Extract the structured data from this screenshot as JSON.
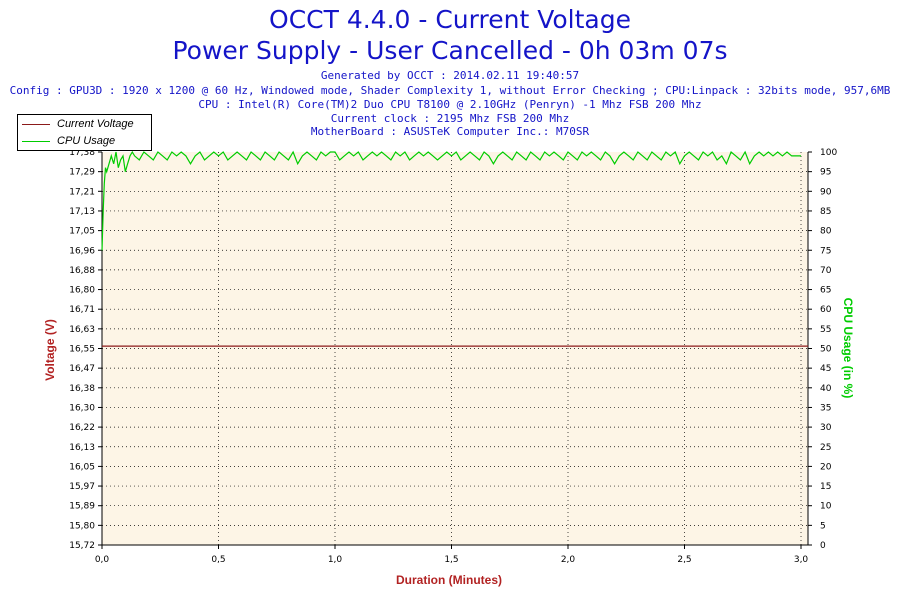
{
  "header": {
    "title": "OCCT 4.4.0 - Current Voltage",
    "subtitle": "Power Supply - User Cancelled - 0h 03m 07s",
    "info": [
      "Generated by OCCT : 2014.02.11 19:40:57",
      "Config : GPU3D : 1920 x 1200 @ 60 Hz, Windowed mode, Shader Complexity 1, without Error Checking ; CPU:Linpack : 32bits mode, 957,6MB",
      "CPU : Intel(R) Core(TM)2 Duo CPU T8100 @ 2.10GHz (Penryn) -1 Mhz FSB 200 Mhz",
      "Current clock : 2195 Mhz FSB 200 Mhz",
      "MotherBoard : ASUSTeK Computer Inc.: M70SR"
    ]
  },
  "legend": {
    "items": [
      {
        "label": "Current Voltage",
        "color": "#8b1a1a"
      },
      {
        "label": "CPU Usage",
        "color": "#00cc00"
      }
    ]
  },
  "colors": {
    "title": "#1414c8",
    "plot_background": "#fdf5e6",
    "grid": "#000000",
    "voltage": "#8b1a1a",
    "cpu": "#00cc00",
    "xlabel": "#b22222",
    "ylabel_left": "#b22222",
    "ylabel_right": "#00cc00"
  },
  "chart_data": {
    "type": "line",
    "title": "OCCT 4.4.0 - Current Voltage",
    "subtitle": "Power Supply - User Cancelled - 0h 03m 07s",
    "xlabel": "Duration (Minutes)",
    "ylabel": "Voltage (V)",
    "y2label": "CPU Usage (in %)",
    "xlim": [
      0,
      3.03
    ],
    "ylim": [
      15.72,
      17.36
    ],
    "y2lim": [
      0,
      100
    ],
    "x_ticks": [
      "0,0",
      "0,5",
      "1,0",
      "1,5",
      "2,0",
      "2,5",
      "3,0"
    ],
    "x_tick_values": [
      0,
      0.5,
      1.0,
      1.5,
      2.0,
      2.5,
      3.0
    ],
    "y_ticks": [
      "17,38",
      "17,29",
      "17,21",
      "17,13",
      "17,05",
      "16,96",
      "16,88",
      "16,80",
      "16,71",
      "16,63",
      "16,55",
      "16,47",
      "16,38",
      "16,30",
      "16,22",
      "16,13",
      "16,05",
      "15,97",
      "15,89",
      "15,80",
      "15,72"
    ],
    "y2_ticks": [
      "100",
      "95",
      "90",
      "85",
      "80",
      "75",
      "70",
      "65",
      "60",
      "55",
      "50",
      "45",
      "40",
      "35",
      "30",
      "25",
      "20",
      "15",
      "10",
      "5",
      "0"
    ],
    "grid": true,
    "legend_position": "top-left",
    "series": [
      {
        "name": "Current Voltage",
        "axis": "left",
        "x": [
          0,
          3.03
        ],
        "y": [
          16.55,
          16.55
        ]
      },
      {
        "name": "CPU Usage",
        "axis": "right",
        "x": [
          0,
          0.005,
          0.01,
          0.015,
          0.02,
          0.03,
          0.04,
          0.05,
          0.06,
          0.07,
          0.08,
          0.09,
          0.1,
          0.11,
          0.12,
          0.13,
          0.14,
          0.16,
          0.18,
          0.2,
          0.22,
          0.24,
          0.26,
          0.28,
          0.3,
          0.32,
          0.34,
          0.36,
          0.38,
          0.4,
          0.42,
          0.44,
          0.46,
          0.48,
          0.5,
          0.52,
          0.54,
          0.56,
          0.58,
          0.6,
          0.62,
          0.64,
          0.66,
          0.68,
          0.7,
          0.72,
          0.74,
          0.76,
          0.78,
          0.8,
          0.82,
          0.84,
          0.86,
          0.88,
          0.9,
          0.92,
          0.94,
          0.96,
          0.98,
          1.0,
          1.02,
          1.04,
          1.06,
          1.08,
          1.1,
          1.12,
          1.14,
          1.16,
          1.18,
          1.2,
          1.22,
          1.24,
          1.26,
          1.28,
          1.3,
          1.32,
          1.34,
          1.36,
          1.38,
          1.4,
          1.42,
          1.44,
          1.46,
          1.48,
          1.5,
          1.52,
          1.54,
          1.56,
          1.58,
          1.6,
          1.62,
          1.64,
          1.66,
          1.68,
          1.7,
          1.72,
          1.74,
          1.76,
          1.78,
          1.8,
          1.82,
          1.84,
          1.86,
          1.88,
          1.9,
          1.92,
          1.94,
          1.96,
          1.98,
          2.0,
          2.02,
          2.04,
          2.06,
          2.08,
          2.1,
          2.12,
          2.14,
          2.16,
          2.18,
          2.2,
          2.22,
          2.24,
          2.26,
          2.28,
          2.3,
          2.32,
          2.34,
          2.36,
          2.38,
          2.4,
          2.42,
          2.44,
          2.46,
          2.48,
          2.5,
          2.52,
          2.54,
          2.56,
          2.58,
          2.6,
          2.62,
          2.64,
          2.66,
          2.68,
          2.7,
          2.72,
          2.74,
          2.76,
          2.78,
          2.8,
          2.82,
          2.84,
          2.86,
          2.88,
          2.9,
          2.92,
          2.94,
          2.96,
          2.98,
          3.0
        ],
        "y": [
          75,
          85,
          92,
          96,
          95,
          97,
          99,
          97,
          100,
          96,
          98,
          99,
          95,
          97,
          99,
          100,
          99,
          98,
          100,
          99,
          98,
          100,
          99,
          98,
          100,
          99,
          100,
          99,
          97,
          99,
          100,
          98,
          99,
          100,
          99,
          100,
          98,
          99,
          100,
          99,
          98,
          100,
          99,
          98,
          100,
          99,
          98,
          100,
          99,
          98,
          100,
          97,
          99,
          100,
          99,
          98,
          100,
          99,
          100,
          100,
          98,
          99,
          100,
          99,
          100,
          98,
          99,
          100,
          99,
          100,
          99,
          98,
          100,
          99,
          100,
          98,
          99,
          100,
          99,
          100,
          99,
          98,
          99,
          100,
          99,
          100,
          98,
          99,
          100,
          99,
          98,
          100,
          99,
          97,
          99,
          100,
          99,
          98,
          100,
          99,
          98,
          100,
          99,
          98,
          100,
          99,
          100,
          99,
          98,
          100,
          99,
          98,
          100,
          99,
          100,
          99,
          98,
          100,
          99,
          97,
          99,
          100,
          99,
          98,
          100,
          99,
          98,
          100,
          99,
          98,
          100,
          99,
          100,
          97,
          99,
          100,
          99,
          98,
          100,
          99,
          100,
          98,
          99,
          97,
          100,
          99,
          98,
          100,
          97,
          99,
          100,
          99,
          100,
          99,
          100,
          99,
          100,
          99,
          99,
          99
        ]
      }
    ]
  }
}
